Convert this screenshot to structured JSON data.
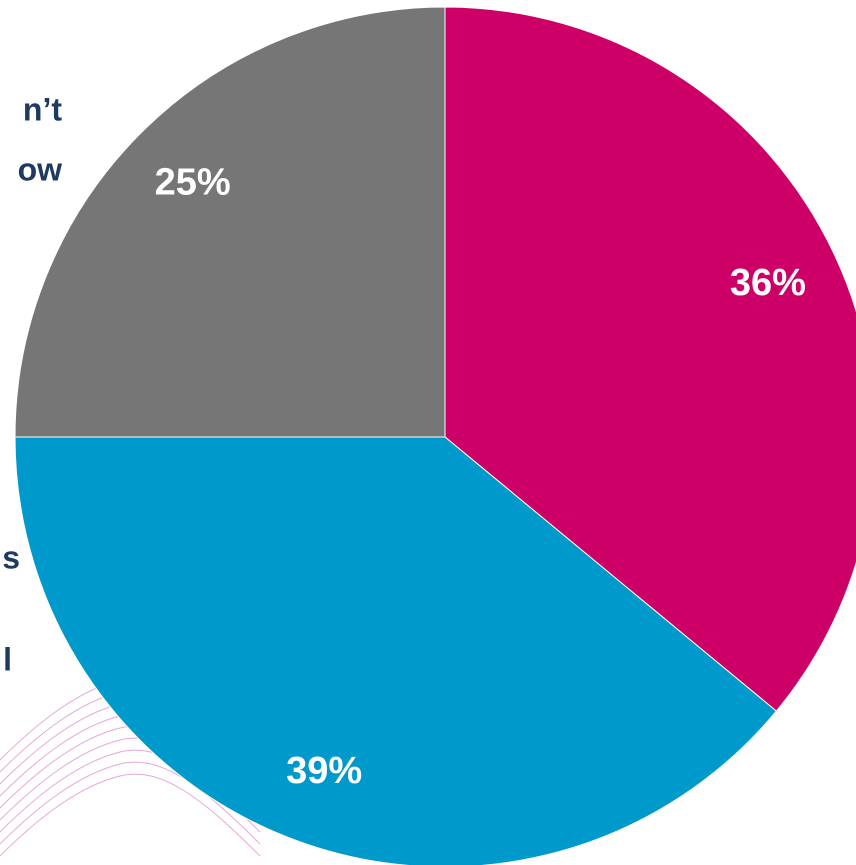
{
  "chart_data": {
    "type": "pie",
    "categories": [
      null,
      null,
      null
    ],
    "values": [
      36,
      39,
      25
    ],
    "value_labels": [
      "36%",
      "39%",
      "25%"
    ],
    "colors": [
      "#cc0066",
      "#0099cc",
      "#767676"
    ],
    "start_angle": 0,
    "direction": "clockwise",
    "annotations": [
      "n’t",
      "ow",
      "s",
      "l"
    ]
  }
}
